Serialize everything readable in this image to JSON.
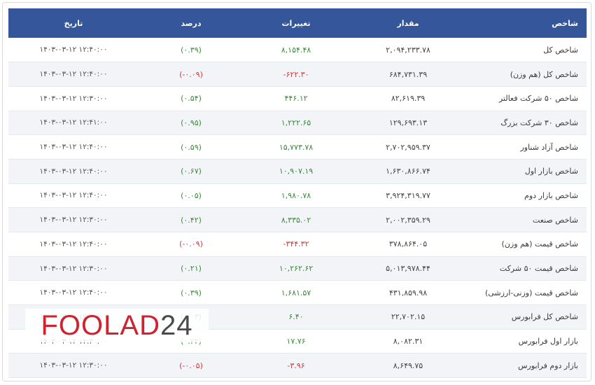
{
  "headers": {
    "name": "شاخص",
    "value": "مقدار",
    "change": "تغییرات",
    "percent": "درصد",
    "date": "تاریخ"
  },
  "rows": [
    {
      "name": "شاخص کل",
      "value": "۲,۰۹۴,۲۳۳.۷۸",
      "change": "۸,۱۵۴.۴۸",
      "percent": "(۰.۳۹)",
      "date": "۱۴۰۳-۰۳-۱۲ ۱۲:۴۰:۰۰",
      "trend": "pos"
    },
    {
      "name": "شاخص کل (هم وزن)",
      "value": "۶۸۴,۷۳۱.۳۹",
      "change": "-۶۲۲.۳۰",
      "percent": "(-۰.۰۹)",
      "date": "۱۴۰۳-۰۳-۱۲ ۱۲:۴۰:۰۰",
      "trend": "neg"
    },
    {
      "name": "شاخص ۵۰ شرکت فعالتر",
      "value": "۸۲,۶۱۹.۳۹",
      "change": "۴۴۶.۱۲",
      "percent": "(۰.۵۴)",
      "date": "۱۴۰۳-۰۳-۱۲ ۱۲:۳۰:۰۰",
      "trend": "pos"
    },
    {
      "name": "شاخص ۳۰ شرکت بزرگ",
      "value": "۱۲۹,۶۹۳.۱۳",
      "change": "۱,۲۲۲.۶۵",
      "percent": "(۰.۹۵)",
      "date": "۱۴۰۳-۰۳-۱۲ ۱۲:۴۱:۰۰",
      "trend": "pos"
    },
    {
      "name": "شاخص آزاد شناور",
      "value": "۲,۷۰۲,۹۵۹.۳۷",
      "change": "۱۵,۷۷۳.۷۸",
      "percent": "(۰.۵۹)",
      "date": "۱۴۰۳-۰۳-۱۲ ۱۲:۴۰:۰۰",
      "trend": "pos"
    },
    {
      "name": "شاخص بازار اول",
      "value": "۱,۶۳۰,۸۶۶.۷۴",
      "change": "۱۰,۹۰۷.۱۹",
      "percent": "(۰.۶۷)",
      "date": "۱۴۰۳-۰۳-۱۲ ۱۲:۴۰:۰۰",
      "trend": "pos"
    },
    {
      "name": "شاخص بازار دوم",
      "value": "۳,۹۲۴,۳۱۹.۷۷",
      "change": "۱,۹۸۰.۷۸",
      "percent": "(۰.۰۵)",
      "date": "۱۴۰۳-۰۳-۱۲ ۱۲:۴۰:۰۰",
      "trend": "pos"
    },
    {
      "name": "شاخص صنعت",
      "value": "۲,۰۰۲,۳۵۹.۲۹",
      "change": "۸,۳۳۵.۰۲",
      "percent": "(۰.۴۲)",
      "date": "۱۴۰۳-۰۳-۱۲ ۱۲:۳۰:۰۰",
      "trend": "pos"
    },
    {
      "name": "شاخص قیمت (هم وزن)",
      "value": "۳۷۸,۸۶۴.۰۵",
      "change": "-۳۴۴.۳۲",
      "percent": "(-۰.۰۹)",
      "date": "۱۴۰۳-۰۳-۱۲ ۱۲:۴۰:۰۰",
      "trend": "neg"
    },
    {
      "name": "شاخص قیمت ۵۰ شرکت",
      "value": "۵,۰۱۳,۹۷۸.۴۴",
      "change": "۱۰,۲۶۲.۶۲",
      "percent": "(۰.۲۱)",
      "date": "۱۴۰۳-۰۳-۱۲ ۱۲:۳۰:۰۰",
      "trend": "pos"
    },
    {
      "name": "شاخص قیمت (وزنی-ارزشی)",
      "value": "۴۳۱,۸۵۹.۹۸",
      "change": "۱,۶۸۱.۵۷",
      "percent": "(۰.۳۹)",
      "date": "۱۴۰۳-۰۳-۱۲ ۱۲:۴۰:۰۰",
      "trend": "pos"
    },
    {
      "name": "شاخص کل فرابورس",
      "value": "۲۲,۷۰۲.۱۵",
      "change": "۶.۴۰",
      "percent": "(۰.۰۳)",
      "date": "۱۴۰۳-۰۳-۱۲ ۱۲:۴۰:۰۰",
      "trend": "pos"
    },
    {
      "name": "بازار اول فرابورس",
      "value": "۸,۰۸۲.۳۱",
      "change": "۱۷.۷۶",
      "percent": "(۰.۲۲)",
      "date": "۱۴۰۳-۰۳-۱۲ ۱۲:۳۰:۰۰",
      "trend": "pos"
    },
    {
      "name": "بازار دوم فرابورس",
      "value": "۸,۶۴۹.۷۵",
      "change": "-۳.۹۶",
      "percent": "(-۰.۰۵)",
      "date": "۱۴۰۳-۰۳-۱۲ ۱۲:۳۰:۰۰",
      "trend": "neg"
    }
  ],
  "watermark": {
    "part_a": "FOOLAD",
    "part_b": "24"
  },
  "colors": {
    "header_bg": "#35569a",
    "positive": "#3c8a3c",
    "negative": "#d23a3a",
    "brand_red": "#d0232f"
  }
}
